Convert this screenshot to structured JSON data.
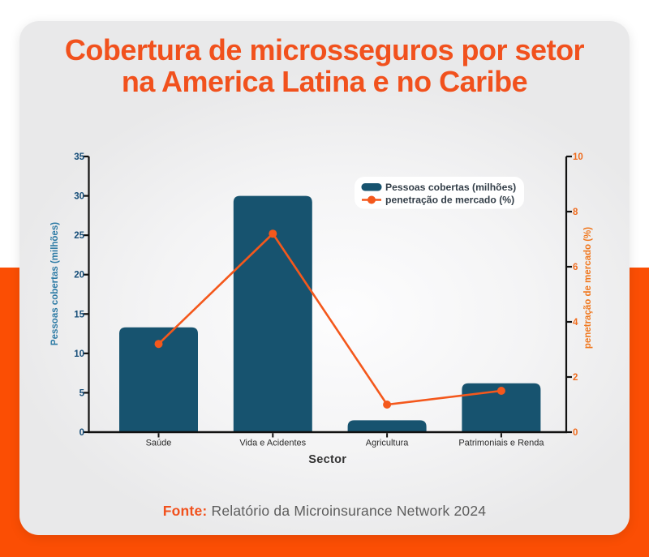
{
  "title": {
    "line1": "Cobertura de microsseguros por setor",
    "line2": "na America Latina e no Caribe",
    "color": "#f1511d"
  },
  "footer": {
    "label": "Fonte:",
    "text": " Relatório da Microinsurance Network 2024",
    "label_color": "#f1511d",
    "text_color": "#5d5d5d"
  },
  "colors": {
    "band_orange": "#fb4e04",
    "card_gray": "#ebebeb",
    "bar_teal": "#17536f",
    "line_orange": "#f4581c",
    "axis_black": "#111111"
  },
  "chart_data": {
    "type": "combo-bar-line",
    "categories": [
      "Saúde",
      "Vida e Acidentes",
      "Agricultura",
      "Patrimoniais e Renda"
    ],
    "series": [
      {
        "name": "Pessoas cobertas (milhões)",
        "type": "bar",
        "axis": "left",
        "values": [
          13.3,
          30,
          1.5,
          6.2
        ],
        "color": "#17536f"
      },
      {
        "name": "penetração de mercado (%)",
        "type": "line",
        "axis": "right",
        "values": [
          3.2,
          7.2,
          1.0,
          1.5
        ],
        "color": "#f4581c"
      }
    ],
    "left_axis": {
      "label": "Pessoas cobertas (milhões)",
      "min": 0,
      "max": 35,
      "step": 5,
      "ticks": [
        0,
        5,
        10,
        15,
        20,
        25,
        30,
        35
      ],
      "tick_color": "#174e79",
      "label_color": "#2e7ba5"
    },
    "right_axis": {
      "label": "penetração de mercado (%)",
      "min": 0,
      "max": 10,
      "step": 2,
      "ticks": [
        0,
        2,
        4,
        6,
        8,
        10
      ],
      "tick_color": "#ef6b1d",
      "label_color": "#f0781f"
    },
    "x_axis": {
      "label": "Sector",
      "tick_color": "#2b2b2b",
      "label_color": "#333333"
    },
    "legend_position": "upper-right",
    "grid": false
  }
}
